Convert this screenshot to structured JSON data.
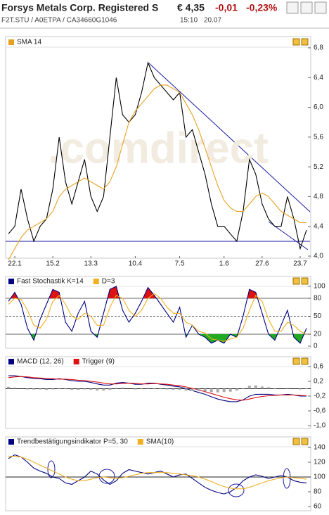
{
  "header": {
    "title": "Forsys Metals Corp. Registered S",
    "price": "€ 4,35",
    "change": "-0,01",
    "change_pct": "-0,23%",
    "ids": "F2T.STU  /  A0ETPA  /  CA34660G1046",
    "time": "15:10",
    "date": "20.07"
  },
  "chart_data": [
    {
      "type": "line",
      "watermark": ".comdirect",
      "categories": [
        null,
        "22.1",
        null,
        null,
        null,
        null,
        null,
        "15.2",
        null,
        null,
        null,
        null,
        null,
        "13.3",
        null,
        null,
        null,
        null,
        null,
        null,
        "10.4",
        null,
        null,
        null,
        null,
        null,
        null,
        "7.5",
        null,
        null,
        null,
        null,
        null,
        null,
        "1.6",
        null,
        null,
        null,
        null,
        null,
        "27.6",
        null,
        null,
        null,
        null,
        null,
        "23.7",
        null
      ],
      "series": [
        {
          "color": "#000000",
          "values": [
            4.3,
            4.4,
            4.9,
            4.5,
            4.2,
            4.4,
            4.5,
            4.9,
            5.6,
            5.0,
            4.7,
            5.0,
            5.3,
            4.8,
            4.6,
            4.8,
            5.6,
            6.4,
            5.9,
            5.8,
            5.9,
            6.2,
            6.6,
            6.4,
            6.3,
            6.2,
            6.1,
            6.2,
            5.6,
            5.7,
            5.4,
            5.1,
            4.7,
            4.4,
            4.4,
            4.3,
            4.2,
            4.6,
            5.3,
            5.1,
            4.7,
            4.5,
            4.4,
            4.4,
            4.8,
            4.5,
            4.1,
            4.35
          ]
        },
        {
          "name": "SMA 14",
          "color": "#e8a020",
          "values": [
            3.95,
            4.1,
            4.25,
            4.35,
            4.4,
            4.45,
            4.5,
            4.6,
            4.8,
            4.9,
            4.95,
            5.0,
            5.05,
            5.0,
            4.95,
            4.9,
            5.0,
            5.2,
            5.5,
            5.8,
            5.95,
            6.05,
            6.15,
            6.25,
            6.3,
            6.3,
            6.25,
            6.2,
            6.05,
            5.9,
            5.7,
            5.45,
            5.2,
            4.95,
            4.75,
            4.65,
            4.6,
            4.6,
            4.7,
            4.8,
            4.85,
            4.8,
            4.7,
            4.6,
            4.55,
            4.5,
            4.45,
            4.45
          ]
        }
      ],
      "ylim": [
        4.0,
        6.8
      ],
      "yticks": [
        {
          "value": 4.0,
          "label": "4,0"
        },
        {
          "value": 4.4,
          "label": "4,4"
        },
        {
          "value": 4.8,
          "label": "4,8"
        },
        {
          "value": 5.2,
          "label": "5,2"
        },
        {
          "value": 5.6,
          "label": "5,6"
        },
        {
          "value": 6.0,
          "label": "6,0"
        },
        {
          "value": 6.4,
          "label": "6,4"
        },
        {
          "value": 6.8,
          "label": "6,8"
        }
      ]
    },
    {
      "type": "line",
      "grid": true,
      "series": [
        {
          "name": "Fast Stochastik K=14",
          "color": "#000080",
          "values": [
            75,
            90,
            70,
            30,
            10,
            45,
            70,
            95,
            90,
            40,
            25,
            55,
            75,
            25,
            15,
            55,
            95,
            100,
            60,
            40,
            55,
            75,
            98,
            85,
            70,
            55,
            40,
            65,
            15,
            35,
            20,
            15,
            5,
            10,
            5,
            20,
            15,
            50,
            95,
            90,
            55,
            20,
            10,
            35,
            60,
            15,
            5,
            30
          ]
        },
        {
          "name": "D=3",
          "color": "#f0b020",
          "values": [
            70,
            80,
            78,
            60,
            35,
            30,
            45,
            75,
            85,
            70,
            50,
            45,
            55,
            50,
            35,
            35,
            65,
            85,
            80,
            60,
            50,
            60,
            80,
            88,
            80,
            65,
            55,
            55,
            40,
            35,
            25,
            22,
            12,
            10,
            8,
            12,
            15,
            30,
            60,
            85,
            75,
            45,
            25,
            25,
            40,
            35,
            25,
            20
          ]
        }
      ],
      "fills": {
        "above": 80,
        "above_color": "#dd1111",
        "below": 20,
        "below_color": "#22aa22"
      },
      "ylim": [
        0,
        100
      ],
      "yticks": [
        0,
        20,
        50,
        80,
        100
      ]
    },
    {
      "type": "line",
      "reference_line": 0,
      "series": [
        {
          "name": "MACD (12, 26)",
          "color": "#000080",
          "values": [
            0.35,
            0.35,
            0.33,
            0.3,
            0.28,
            0.27,
            0.25,
            0.25,
            0.27,
            0.25,
            0.22,
            0.2,
            0.2,
            0.17,
            0.13,
            0.1,
            0.1,
            0.15,
            0.17,
            0.15,
            0.12,
            0.12,
            0.15,
            0.15,
            0.12,
            0.1,
            0.07,
            0.05,
            0.0,
            -0.05,
            -0.1,
            -0.15,
            -0.22,
            -0.28,
            -0.32,
            -0.35,
            -0.35,
            -0.3,
            -0.2,
            -0.15,
            -0.15,
            -0.15,
            -0.17,
            -0.17,
            -0.15,
            -0.17,
            -0.2,
            -0.2
          ]
        },
        {
          "name": "Trigger (9)",
          "color": "#dd1111",
          "values": [
            0.3,
            0.32,
            0.33,
            0.32,
            0.3,
            0.29,
            0.28,
            0.27,
            0.26,
            0.26,
            0.25,
            0.23,
            0.22,
            0.2,
            0.18,
            0.15,
            0.13,
            0.13,
            0.14,
            0.15,
            0.14,
            0.13,
            0.13,
            0.14,
            0.13,
            0.12,
            0.1,
            0.08,
            0.05,
            0.01,
            -0.03,
            -0.08,
            -0.13,
            -0.18,
            -0.23,
            -0.27,
            -0.3,
            -0.31,
            -0.28,
            -0.24,
            -0.21,
            -0.19,
            -0.18,
            -0.17,
            -0.17,
            -0.17,
            -0.18,
            -0.19
          ]
        },
        {
          "type": "bar",
          "color": "#aaaaaa",
          "values": [
            0.05,
            0.03,
            0,
            -0.02,
            -0.02,
            -0.02,
            -0.03,
            -0.02,
            0.01,
            -0.01,
            -0.03,
            -0.03,
            -0.02,
            -0.03,
            -0.05,
            -0.05,
            -0.03,
            0.02,
            0.03,
            0,
            -0.02,
            -0.01,
            0.02,
            0.01,
            -0.01,
            -0.02,
            -0.03,
            -0.03,
            -0.05,
            -0.06,
            -0.07,
            -0.07,
            -0.09,
            -0.1,
            -0.09,
            -0.08,
            -0.05,
            0.01,
            0.08,
            0.09,
            0.06,
            0.04,
            0.01,
            0,
            0.02,
            0,
            -0.02,
            -0.01
          ]
        }
      ],
      "ylim": [
        -1.0,
        0.6
      ],
      "yticks": [
        {
          "value": -1.0,
          "label": "-1,0"
        },
        {
          "value": -0.6,
          "label": "-0,6"
        },
        {
          "value": -0.2,
          "label": "-0,2"
        },
        {
          "value": 0.2,
          "label": "0,2"
        },
        {
          "value": 0.6,
          "label": "0,6"
        }
      ]
    },
    {
      "type": "line",
      "reference_line": 100,
      "series": [
        {
          "name": "Trendbestätigungsindikator P=5, 30",
          "color": "#000080",
          "values": [
            125,
            130,
            127,
            120,
            112,
            108,
            105,
            100,
            98,
            92,
            90,
            95,
            100,
            108,
            104,
            96,
            90,
            95,
            105,
            110,
            108,
            106,
            104,
            106,
            108,
            104,
            100,
            103,
            104,
            98,
            92,
            86,
            82,
            79,
            77,
            80,
            86,
            95,
            100,
            103,
            101,
            98,
            100,
            102,
            100,
            95,
            93,
            92
          ]
        },
        {
          "name": "SMA(10)",
          "color": "#f0b020",
          "values": [
            128,
            128,
            127,
            124,
            120,
            116,
            112,
            108,
            104,
            100,
            97,
            95,
            95,
            97,
            99,
            100,
            99,
            98,
            99,
            101,
            103,
            105,
            106,
            106,
            106,
            106,
            105,
            104,
            103,
            102,
            100,
            97,
            94,
            90,
            87,
            85,
            84,
            84,
            86,
            89,
            92,
            95,
            97,
            99,
            100,
            99,
            98,
            97
          ]
        }
      ],
      "ylim": [
        60,
        140
      ],
      "yticks": [
        60,
        80,
        100,
        120,
        140
      ]
    }
  ]
}
